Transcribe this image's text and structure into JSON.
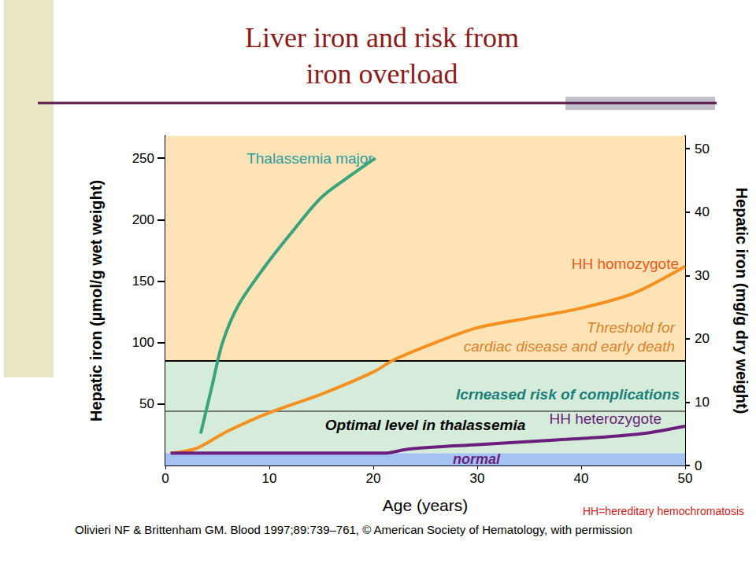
{
  "chart_data": {
    "type": "line",
    "title": "Liver iron and risk from\niron overload",
    "x_label": "Age (years)",
    "y_label": "Hepatic iron (µmol/g wet weight)",
    "y2_label": "Hepatic iron (mg/g dry weight)",
    "xlim": [
      0,
      50
    ],
    "xticks": [
      0,
      10,
      20,
      30,
      40,
      50
    ],
    "ylim": [
      0,
      268
    ],
    "yticks": [
      50,
      100,
      150,
      200,
      250
    ],
    "y2lim": [
      0,
      52
    ],
    "y2ticks": [
      0,
      10,
      20,
      30,
      40,
      50
    ],
    "grid": false,
    "series": [
      {
        "name": "Thalassemia major",
        "color": "#3aa37c",
        "x": [
          3.4,
          4.5,
          5.5,
          7,
          9.5,
          12,
          15,
          18,
          20.2
        ],
        "values": [
          26,
          65,
          100,
          130,
          161,
          188,
          218,
          237,
          250
        ]
      },
      {
        "name": "HH homozygote",
        "color": "#f7901e",
        "x": [
          0.5,
          3,
          6,
          10,
          15,
          20,
          22,
          26,
          30,
          35,
          40,
          45,
          50
        ],
        "values": [
          10,
          14,
          28,
          43,
          58,
          76,
          86,
          100,
          112,
          120,
          128,
          140,
          162
        ]
      },
      {
        "name": "HH heterozygote",
        "color": "#6b1f7c",
        "x": [
          0.5,
          10,
          21,
          23.5,
          30,
          37,
          42,
          46,
          50
        ],
        "values": [
          10,
          10,
          10,
          13.5,
          17,
          20.5,
          23,
          26,
          32
        ]
      }
    ],
    "bands": [
      {
        "label": "normal",
        "from": 0,
        "to": 10,
        "color": "#a4c2f4"
      },
      {
        "label": "Icrneased risk of complications",
        "from": 10,
        "to": 85,
        "color": "#d4ecd9"
      },
      {
        "label": "Threshold for\ncardiac disease and early death",
        "from": 85,
        "to": 268,
        "color": "#fde3b5"
      }
    ],
    "reference_lines": [
      {
        "label": "Optimal level in thalassemia",
        "value": 44
      }
    ],
    "footnote": "HH=hereditary hemochromatosis",
    "source": "Olivieri NF & Brittenham GM. Blood 1997;89:739–761, © American Society of Hematology, with permission"
  }
}
